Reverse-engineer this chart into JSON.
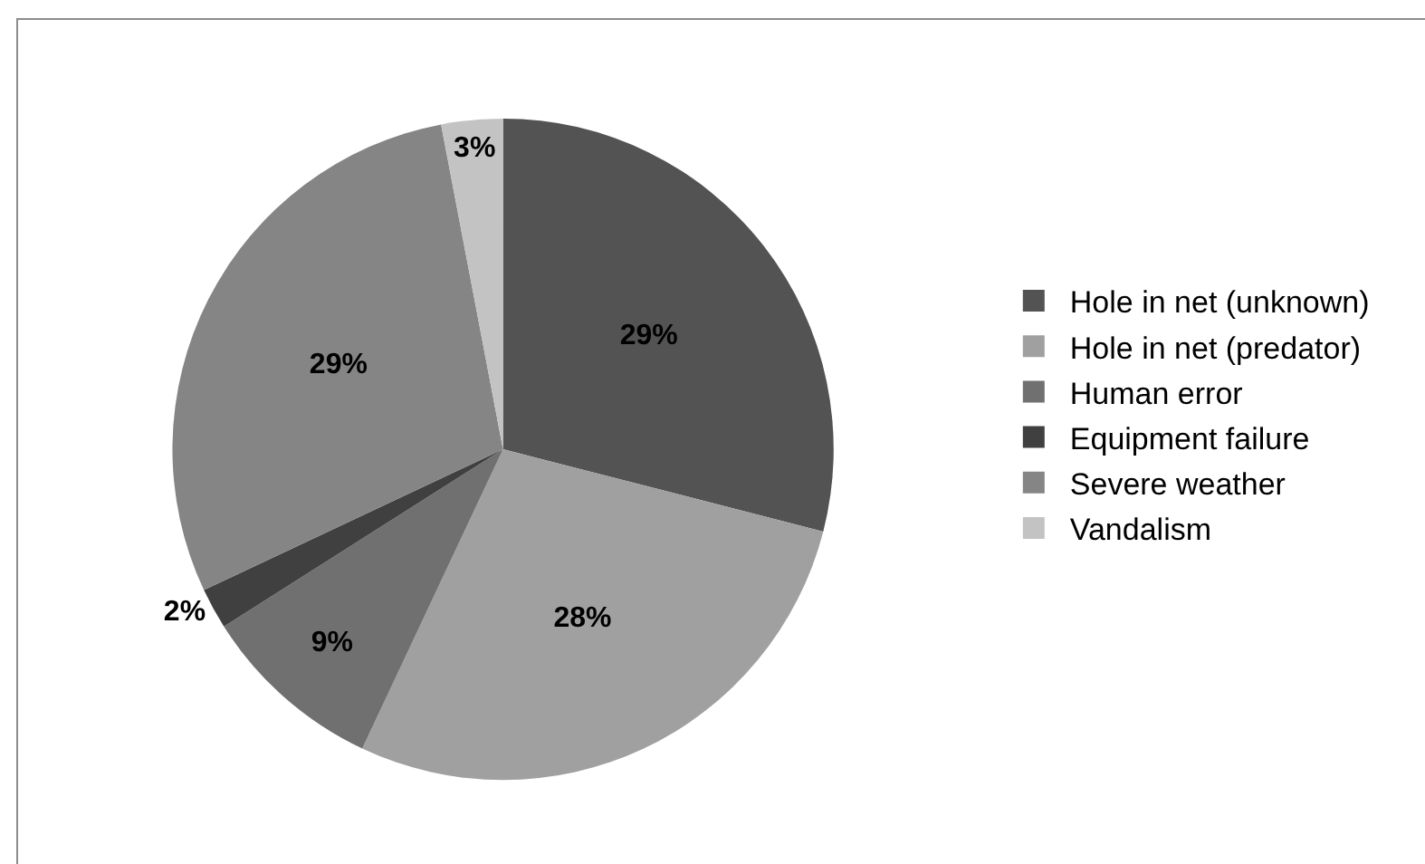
{
  "chart_data": {
    "type": "pie",
    "categories": [
      "Hole in net (unknown)",
      "Hole in net (predator)",
      "Human error",
      "Equipment failure",
      "Severe weather",
      "Vandalism"
    ],
    "values": [
      29,
      28,
      9,
      2,
      29,
      3
    ],
    "value_labels": [
      "29%",
      "28%",
      "9%",
      "2%",
      "29%",
      "3%"
    ],
    "colors": [
      "#535353",
      "#a0a0a0",
      "#707070",
      "#404040",
      "#858585",
      "#c3c3c3"
    ],
    "legend": "right"
  }
}
